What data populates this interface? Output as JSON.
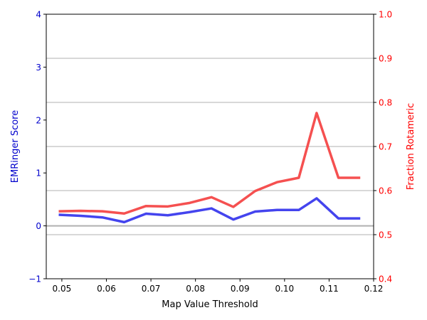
{
  "chart_data": {
    "type": "line",
    "xlabel": "Map Value Threshold",
    "ylabel_left": "EMRinger Score",
    "ylabel_right": "Fraction Rotameric",
    "xlim": [
      0.0465,
      0.12
    ],
    "ylim_left": [
      -1,
      4
    ],
    "ylim_right": [
      0.4,
      1.0
    ],
    "x_ticks": [
      "0.05",
      "0.06",
      "0.07",
      "0.08",
      "0.09",
      "0.10",
      "0.11",
      "0.12"
    ],
    "y_left_ticks": [
      "−1",
      "0",
      "1",
      "2",
      "3",
      "4"
    ],
    "y_right_ticks": [
      "0.4",
      "0.5",
      "0.6",
      "0.7",
      "0.8",
      "0.9",
      "1.0"
    ],
    "grid": "right-axis horizontal",
    "zero_line_left": 0,
    "colors": {
      "left_axis": "#0000cc",
      "right_axis": "#ff0000",
      "emringer_line": "#4444ee",
      "rotameric_line": "#f55050",
      "grid": "#b0b0b0",
      "zero_line": "#b0b0b0"
    },
    "x": [
      0.0493,
      0.0542,
      0.0591,
      0.064,
      0.0689,
      0.0738,
      0.0787,
      0.0836,
      0.0885,
      0.0934,
      0.0983,
      0.1032,
      0.1072,
      0.1121,
      0.117
    ],
    "series": [
      {
        "axis": "left",
        "values": [
          0.21,
          0.19,
          0.16,
          0.07,
          0.23,
          0.2,
          0.26,
          0.33,
          0.12,
          0.27,
          0.3,
          0.3,
          0.52,
          0.14,
          0.14
        ]
      },
      {
        "axis": "right",
        "values": [
          0.553,
          0.554,
          0.553,
          0.548,
          0.565,
          0.564,
          0.572,
          0.585,
          0.563,
          0.599,
          0.619,
          0.629,
          0.776,
          0.629,
          0.629
        ]
      }
    ]
  }
}
